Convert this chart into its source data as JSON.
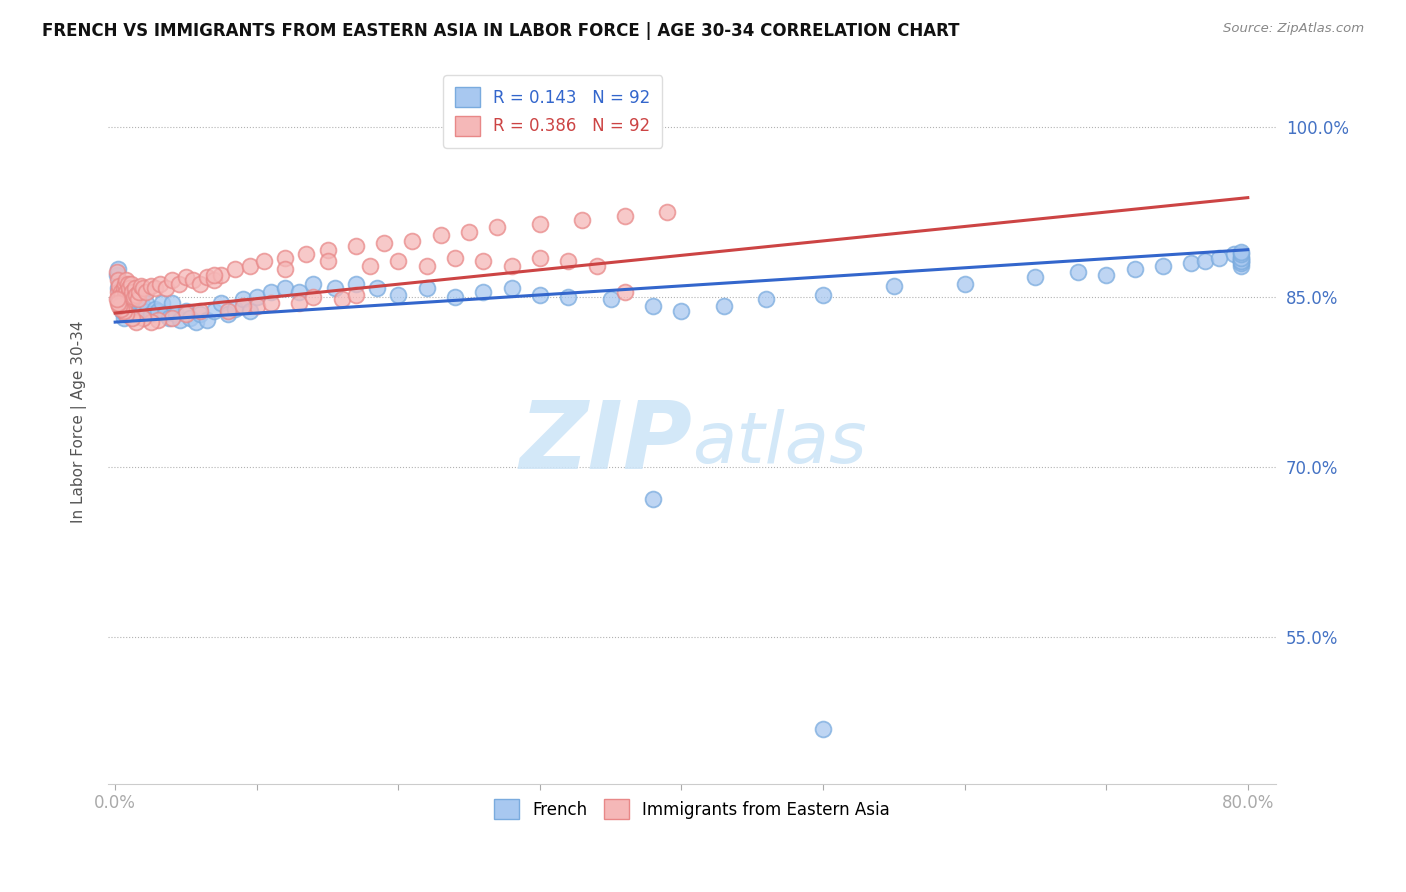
{
  "title": "FRENCH VS IMMIGRANTS FROM EASTERN ASIA IN LABOR FORCE | AGE 30-34 CORRELATION CHART",
  "source": "Source: ZipAtlas.com",
  "ylabel": "In Labor Force | Age 30-34",
  "xlim": [
    -0.005,
    0.82
  ],
  "ylim": [
    0.42,
    1.06
  ],
  "xticks": [
    0.0,
    0.1,
    0.2,
    0.3,
    0.4,
    0.5,
    0.6,
    0.7,
    0.8
  ],
  "xticklabels": [
    "0.0%",
    "",
    "",
    "",
    "",
    "",
    "",
    "",
    "80.0%"
  ],
  "ytick_right": [
    0.55,
    0.7,
    0.85,
    1.0
  ],
  "yticklabels_right": [
    "55.0%",
    "70.0%",
    "85.0%",
    "100.0%"
  ],
  "blue_color": "#a8c8f0",
  "blue_edge": "#7aabde",
  "pink_color": "#f5b8b8",
  "pink_edge": "#e88888",
  "blue_line_color": "#3366cc",
  "pink_line_color": "#cc4444",
  "watermark_color": "#cce4f7",
  "blue_line_y0": 0.828,
  "blue_line_y1": 0.892,
  "pink_line_y0": 0.836,
  "pink_line_y1": 0.938,
  "french_x": [
    0.001,
    0.002,
    0.002,
    0.003,
    0.003,
    0.004,
    0.004,
    0.005,
    0.005,
    0.006,
    0.006,
    0.007,
    0.007,
    0.008,
    0.008,
    0.009,
    0.009,
    0.01,
    0.01,
    0.011,
    0.012,
    0.013,
    0.014,
    0.015,
    0.016,
    0.017,
    0.018,
    0.019,
    0.02,
    0.022,
    0.025,
    0.028,
    0.03,
    0.033,
    0.035,
    0.038,
    0.04,
    0.043,
    0.046,
    0.05,
    0.053,
    0.057,
    0.06,
    0.065,
    0.07,
    0.075,
    0.08,
    0.085,
    0.09,
    0.095,
    0.1,
    0.11,
    0.12,
    0.13,
    0.14,
    0.155,
    0.17,
    0.185,
    0.2,
    0.22,
    0.24,
    0.26,
    0.28,
    0.3,
    0.32,
    0.35,
    0.38,
    0.4,
    0.43,
    0.46,
    0.5,
    0.55,
    0.6,
    0.65,
    0.68,
    0.7,
    0.72,
    0.74,
    0.76,
    0.77,
    0.78,
    0.79,
    0.795,
    0.795,
    0.795,
    0.795,
    0.795,
    0.795,
    0.795,
    0.795,
    0.38,
    0.5
  ],
  "french_y": [
    0.87,
    0.875,
    0.858,
    0.862,
    0.848,
    0.855,
    0.842,
    0.85,
    0.838,
    0.845,
    0.832,
    0.848,
    0.835,
    0.852,
    0.84,
    0.855,
    0.843,
    0.848,
    0.836,
    0.855,
    0.845,
    0.838,
    0.852,
    0.843,
    0.838,
    0.845,
    0.852,
    0.843,
    0.838,
    0.845,
    0.835,
    0.84,
    0.838,
    0.845,
    0.835,
    0.832,
    0.845,
    0.835,
    0.83,
    0.838,
    0.832,
    0.828,
    0.835,
    0.83,
    0.838,
    0.845,
    0.835,
    0.84,
    0.848,
    0.838,
    0.85,
    0.855,
    0.858,
    0.855,
    0.862,
    0.858,
    0.862,
    0.858,
    0.852,
    0.858,
    0.85,
    0.855,
    0.858,
    0.852,
    0.85,
    0.848,
    0.842,
    0.838,
    0.842,
    0.848,
    0.852,
    0.86,
    0.862,
    0.868,
    0.872,
    0.87,
    0.875,
    0.878,
    0.88,
    0.882,
    0.885,
    0.888,
    0.885,
    0.882,
    0.878,
    0.88,
    0.882,
    0.885,
    0.888,
    0.89,
    0.672,
    0.468
  ],
  "pink_x": [
    0.001,
    0.002,
    0.002,
    0.003,
    0.003,
    0.004,
    0.004,
    0.005,
    0.005,
    0.006,
    0.006,
    0.007,
    0.007,
    0.008,
    0.008,
    0.009,
    0.009,
    0.01,
    0.01,
    0.011,
    0.012,
    0.013,
    0.014,
    0.015,
    0.016,
    0.017,
    0.018,
    0.02,
    0.022,
    0.025,
    0.028,
    0.032,
    0.036,
    0.04,
    0.045,
    0.05,
    0.055,
    0.06,
    0.065,
    0.07,
    0.075,
    0.085,
    0.095,
    0.105,
    0.12,
    0.135,
    0.15,
    0.17,
    0.19,
    0.21,
    0.23,
    0.25,
    0.27,
    0.3,
    0.33,
    0.36,
    0.39,
    0.07,
    0.12,
    0.15,
    0.18,
    0.2,
    0.22,
    0.24,
    0.26,
    0.28,
    0.3,
    0.32,
    0.34,
    0.36,
    0.1,
    0.13,
    0.16,
    0.08,
    0.09,
    0.11,
    0.14,
    0.17,
    0.06,
    0.05,
    0.04,
    0.03,
    0.025,
    0.02,
    0.015,
    0.012,
    0.008,
    0.006,
    0.004,
    0.003,
    0.002,
    0.001
  ],
  "pink_y": [
    0.872,
    0.865,
    0.855,
    0.86,
    0.848,
    0.855,
    0.842,
    0.852,
    0.845,
    0.858,
    0.848,
    0.862,
    0.852,
    0.865,
    0.855,
    0.862,
    0.852,
    0.858,
    0.848,
    0.862,
    0.855,
    0.85,
    0.858,
    0.852,
    0.848,
    0.855,
    0.86,
    0.858,
    0.855,
    0.86,
    0.858,
    0.862,
    0.858,
    0.865,
    0.862,
    0.868,
    0.865,
    0.862,
    0.868,
    0.865,
    0.87,
    0.875,
    0.878,
    0.882,
    0.885,
    0.888,
    0.892,
    0.895,
    0.898,
    0.9,
    0.905,
    0.908,
    0.912,
    0.915,
    0.918,
    0.922,
    0.925,
    0.87,
    0.875,
    0.882,
    0.878,
    0.882,
    0.878,
    0.885,
    0.882,
    0.878,
    0.885,
    0.882,
    0.878,
    0.855,
    0.842,
    0.845,
    0.848,
    0.838,
    0.842,
    0.845,
    0.85,
    0.852,
    0.838,
    0.835,
    0.832,
    0.83,
    0.828,
    0.832,
    0.828,
    0.832,
    0.835,
    0.838,
    0.84,
    0.842,
    0.845,
    0.848
  ]
}
